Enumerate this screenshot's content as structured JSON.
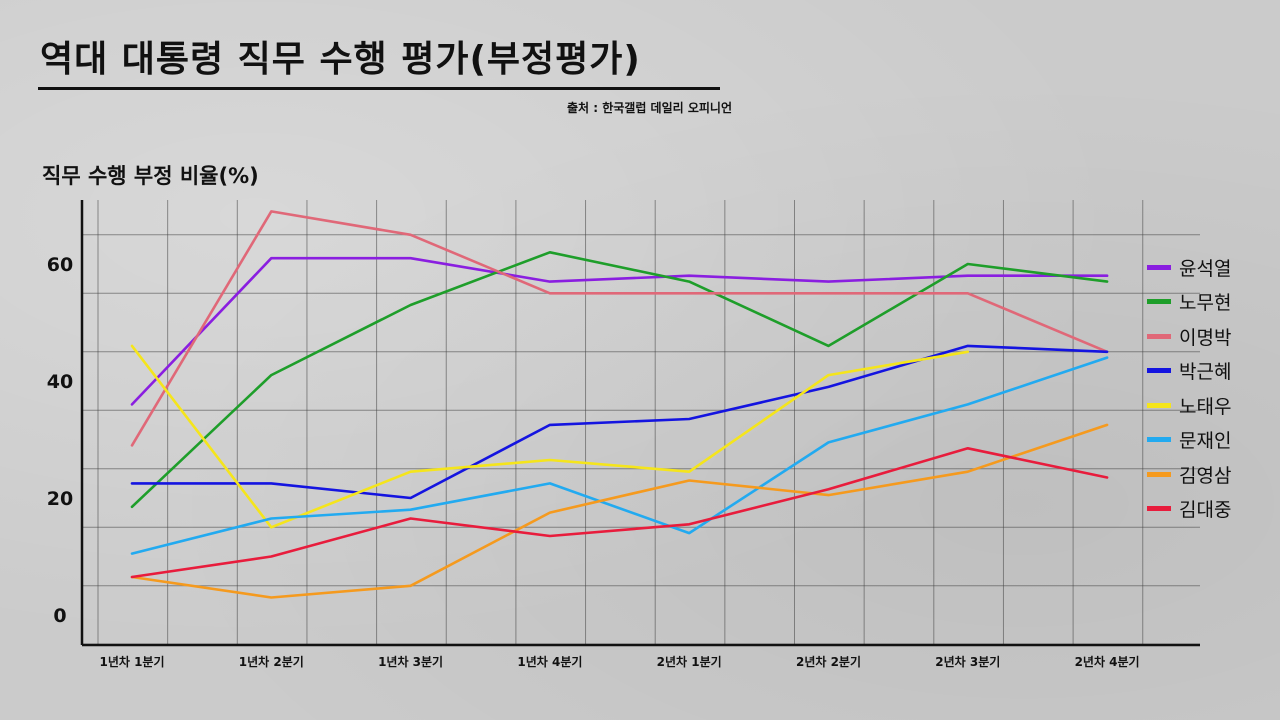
{
  "title": "역대 대통령 직무 수행 평가(부정평가)",
  "source": "출처 : 한국갤럽 데일리 오피니언",
  "chart_data": {
    "type": "line",
    "title": "역대 대통령 직무 수행 평가(부정평가)",
    "ylabel": "직무 수행 부정 비율(%)",
    "xlabel": "",
    "categories": [
      "1년차 1분기",
      "1년차 2분기",
      "1년차 3분기",
      "1년차 4분기",
      "2년차 1분기",
      "2년차 2분기",
      "2년차 3분기",
      "2년차 4분기"
    ],
    "y_ticks": [
      "0",
      "20",
      "40",
      "60"
    ],
    "ylim": [
      -5,
      71
    ],
    "grid": true,
    "legend_position": "right",
    "series": [
      {
        "name": "윤석열",
        "color": "#8a1ee0",
        "values": [
          36,
          61,
          61,
          57,
          58,
          57,
          58,
          58
        ]
      },
      {
        "name": "노무현",
        "color": "#1e9e2a",
        "values": [
          18.5,
          41,
          53,
          62,
          57,
          46,
          60,
          57
        ]
      },
      {
        "name": "이명박",
        "color": "#e06878",
        "values": [
          29,
          69,
          65,
          55,
          55,
          55,
          55,
          45
        ]
      },
      {
        "name": "박근혜",
        "color": "#1414e0",
        "values": [
          22.5,
          22.5,
          20,
          32.5,
          33.5,
          39,
          46,
          45
        ]
      },
      {
        "name": "노태우",
        "color": "#f5e51b",
        "values": [
          46,
          15,
          24.5,
          26.5,
          24.5,
          41,
          45,
          null
        ]
      },
      {
        "name": "문재인",
        "color": "#22aaf0",
        "values": [
          10.5,
          16.5,
          18,
          22.5,
          14,
          29.5,
          36,
          44
        ]
      },
      {
        "name": "김영삼",
        "color": "#f59a1e",
        "values": [
          6.5,
          3,
          5,
          17.5,
          23,
          20.5,
          24.5,
          32.5
        ]
      },
      {
        "name": "김대중",
        "color": "#e81c3c",
        "values": [
          6.5,
          10,
          16.5,
          13.5,
          15.5,
          21.5,
          28.5,
          23.5
        ]
      }
    ]
  }
}
